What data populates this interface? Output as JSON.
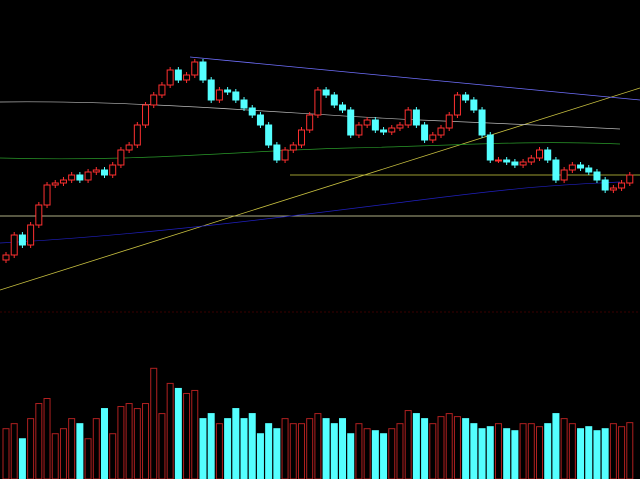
{
  "chart_data": {
    "type": "candlestick",
    "open": [
      50,
      55,
      75,
      65,
      85,
      105,
      125,
      127,
      130,
      135,
      130,
      138,
      140,
      135,
      145,
      160,
      165,
      185,
      205,
      215,
      225,
      240,
      230,
      235,
      248,
      230,
      210,
      220,
      218,
      210,
      202,
      195,
      185,
      165,
      150,
      160,
      165,
      180,
      195,
      220,
      215,
      205,
      200,
      175,
      185,
      190,
      180,
      178,
      182,
      185,
      200,
      185,
      170,
      175,
      182,
      195,
      215,
      210,
      200,
      175,
      150,
      150,
      148,
      145,
      148,
      152,
      160,
      150,
      130,
      140,
      145,
      142,
      138,
      130,
      120,
      122,
      127
    ],
    "high": [
      58,
      78,
      78,
      88,
      108,
      128,
      130,
      133,
      138,
      138,
      141,
      143,
      143,
      148,
      163,
      168,
      188,
      208,
      218,
      228,
      243,
      243,
      238,
      251,
      251,
      233,
      223,
      223,
      221,
      213,
      205,
      198,
      188,
      168,
      163,
      168,
      183,
      198,
      223,
      223,
      218,
      208,
      203,
      188,
      193,
      193,
      183,
      185,
      188,
      203,
      203,
      188,
      178,
      185,
      198,
      218,
      218,
      213,
      203,
      178,
      153,
      153,
      151,
      151,
      155,
      163,
      163,
      153,
      143,
      148,
      148,
      145,
      141,
      133,
      125,
      130,
      138
    ],
    "low": [
      47,
      52,
      62,
      62,
      82,
      102,
      122,
      124,
      127,
      127,
      127,
      135,
      132,
      132,
      142,
      157,
      162,
      182,
      202,
      212,
      222,
      227,
      227,
      232,
      227,
      207,
      207,
      215,
      207,
      199,
      192,
      182,
      162,
      147,
      147,
      157,
      162,
      177,
      192,
      212,
      202,
      197,
      172,
      172,
      182,
      177,
      175,
      175,
      179,
      182,
      182,
      167,
      167,
      172,
      179,
      192,
      207,
      197,
      172,
      147,
      147,
      145,
      142,
      142,
      145,
      149,
      147,
      127,
      127,
      137,
      139,
      135,
      127,
      117,
      117,
      119,
      124
    ],
    "close": [
      55,
      75,
      65,
      85,
      105,
      125,
      127,
      130,
      135,
      130,
      138,
      140,
      135,
      145,
      160,
      165,
      185,
      205,
      215,
      225,
      240,
      230,
      235,
      248,
      230,
      210,
      220,
      218,
      210,
      202,
      195,
      185,
      165,
      150,
      160,
      165,
      180,
      195,
      220,
      215,
      205,
      200,
      175,
      185,
      190,
      180,
      178,
      182,
      185,
      200,
      185,
      170,
      175,
      182,
      195,
      215,
      210,
      200,
      175,
      150,
      150,
      148,
      145,
      148,
      152,
      160,
      150,
      130,
      140,
      145,
      142,
      138,
      130,
      120,
      122,
      127,
      135
    ],
    "volume": [
      50,
      55,
      40,
      60,
      75,
      80,
      45,
      50,
      60,
      55,
      40,
      60,
      70,
      45,
      72,
      75,
      70,
      75,
      110,
      65,
      95,
      90,
      85,
      88,
      60,
      65,
      55,
      60,
      70,
      60,
      65,
      45,
      55,
      50,
      60,
      55,
      55,
      60,
      65,
      60,
      55,
      60,
      45,
      55,
      50,
      48,
      45,
      50,
      55,
      68,
      65,
      60,
      55,
      62,
      65,
      62,
      60,
      55,
      50,
      52,
      55,
      50,
      48,
      55,
      55,
      52,
      55,
      65,
      60,
      55,
      50,
      52,
      48,
      50,
      55,
      52,
      56
    ],
    "ylim": [
      0,
      310
    ],
    "volume_ylim": [
      0,
      160
    ],
    "up_color": "#ff3030",
    "down_color": "#54ffff"
  }
}
